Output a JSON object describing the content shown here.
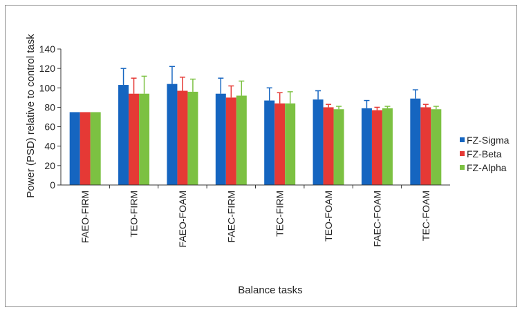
{
  "chart_data": {
    "type": "bar",
    "title": "",
    "xlabel": "Balance tasks",
    "ylabel": "Power (PSD) relative to control task",
    "ylim": [
      0,
      140
    ],
    "yticks": [
      0,
      20,
      40,
      60,
      80,
      100,
      120,
      140
    ],
    "grid": false,
    "legend_position": "right",
    "categories": [
      "FAEO-FIRM",
      "TEO-FIRM",
      "FAEO-FOAM",
      "FAEC-FIRM",
      "TEC-FIRM",
      "TEO-FOAM",
      "FAEC-FOAM",
      "TEC-FOAM"
    ],
    "series": [
      {
        "name": "FZ-Sigma",
        "color": "#1565c0",
        "values": [
          75,
          103,
          104,
          94,
          87,
          88,
          79,
          89
        ],
        "error": [
          0,
          17,
          18,
          16,
          13,
          9,
          8,
          9
        ]
      },
      {
        "name": "FZ-Beta",
        "color": "#e53935",
        "values": [
          75,
          94,
          97,
          90,
          84,
          80,
          77,
          80
        ],
        "error": [
          0,
          16,
          14,
          12,
          11,
          3,
          3,
          3
        ]
      },
      {
        "name": "FZ-Alpha",
        "color": "#7cc142",
        "values": [
          75,
          94,
          96,
          92,
          84,
          78,
          79,
          78
        ],
        "error": [
          0,
          18,
          13,
          15,
          12,
          3,
          2,
          3
        ]
      }
    ]
  }
}
